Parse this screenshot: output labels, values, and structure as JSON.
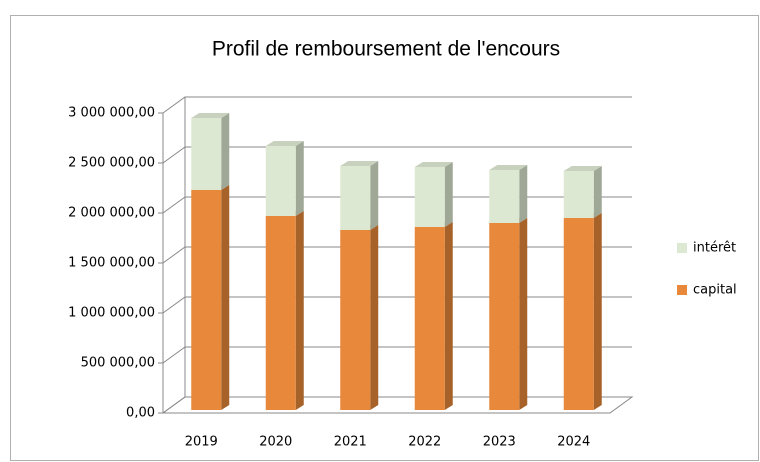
{
  "chart_data": {
    "type": "bar3d_stacked",
    "title": "Profil de remboursement  de l'encours",
    "categories": [
      "2019",
      "2020",
      "2021",
      "2022",
      "2023",
      "2024"
    ],
    "series": [
      {
        "name": "capital",
        "color": "#e8883a",
        "values": [
          2200000,
          1940000,
          1800000,
          1830000,
          1870000,
          1920000
        ]
      },
      {
        "name": "intérêt",
        "color": "#dde8d2",
        "values": [
          720000,
          700000,
          640000,
          600000,
          530000,
          470000
        ]
      }
    ],
    "ylim": [
      0,
      3000000
    ],
    "yticks": [
      {
        "value": 0,
        "label": "0,00"
      },
      {
        "value": 500000,
        "label": "500 000,00"
      },
      {
        "value": 1000000,
        "label": "1 000 000,00"
      },
      {
        "value": 1500000,
        "label": "1 500 000,00"
      },
      {
        "value": 2000000,
        "label": "2 000 000,00"
      },
      {
        "value": 2500000,
        "label": "2 500 000,00"
      },
      {
        "value": 3000000,
        "label": "3 000 000,00"
      }
    ],
    "grid": true,
    "legend": "right"
  }
}
